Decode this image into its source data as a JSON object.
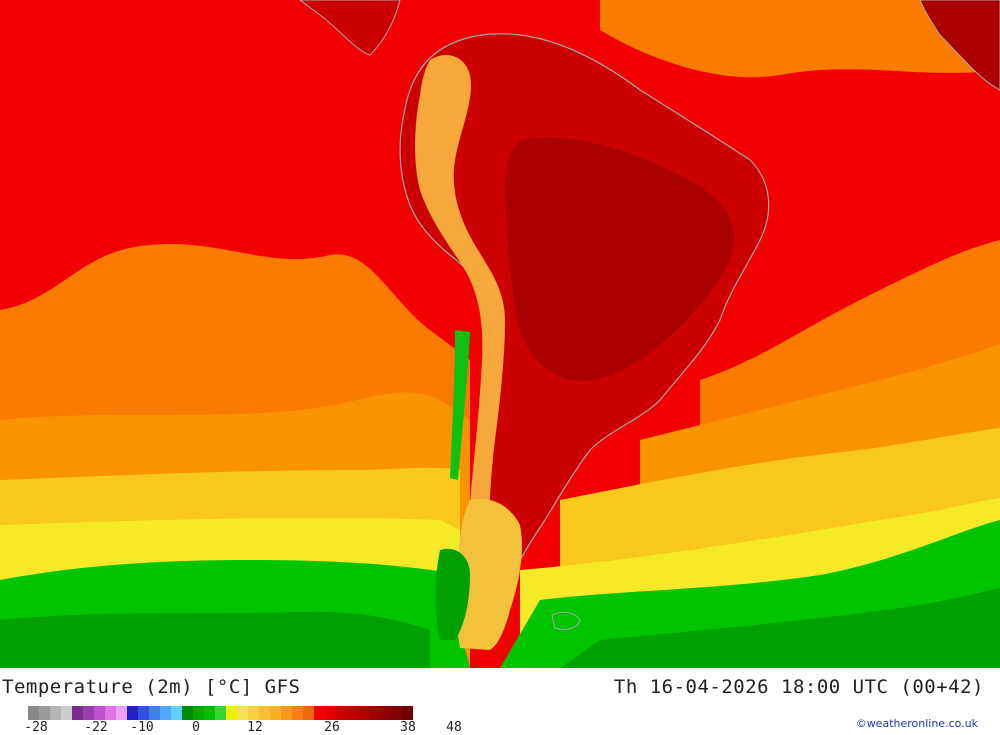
{
  "header": {
    "title": "Temperature (2m) [°C] GFS",
    "datetime": "Th 16-04-2026 18:00 UTC (00+42)"
  },
  "legend": {
    "ticks": [
      "-28",
      "-22",
      "-10",
      "0",
      "12",
      "26",
      "38",
      "48"
    ],
    "colors": [
      "#888888",
      "#9a9a9a",
      "#b4b4b4",
      "#cdcdcd",
      "#7a2f8f",
      "#9b3fb0",
      "#c050d0",
      "#e070e8",
      "#f0a0f8",
      "#2020c8",
      "#3050e8",
      "#4080f0",
      "#50a8f8",
      "#60d0ff",
      "#008a00",
      "#00a800",
      "#00c000",
      "#30d830",
      "#f0f000",
      "#f8e050",
      "#f8d040",
      "#f8c030",
      "#f8b020",
      "#f89818",
      "#f88010",
      "#f06808",
      "#f00000",
      "#e00000",
      "#d00000",
      "#c00000",
      "#b00000",
      "#a00000",
      "#900000",
      "#800000",
      "#700000"
    ]
  },
  "credit": "©weatheronline.co.uk",
  "map": {
    "region": "South America",
    "colors": {
      "ocean_north": "#f20000",
      "ocean_mid": "#fb7a00",
      "ocean_orange2": "#f99400",
      "ocean_yellow": "#f8c81c",
      "ocean_lightyellow": "#f6ea28",
      "southern_green": "#00c400",
      "southern_green_dark": "#00a000",
      "land_hot": "#cc0000",
      "land_hottest": "#aa0000",
      "andes": "#f6a83a",
      "patagonia": "#f2c23a",
      "coastline": "#a8a8a8"
    }
  }
}
